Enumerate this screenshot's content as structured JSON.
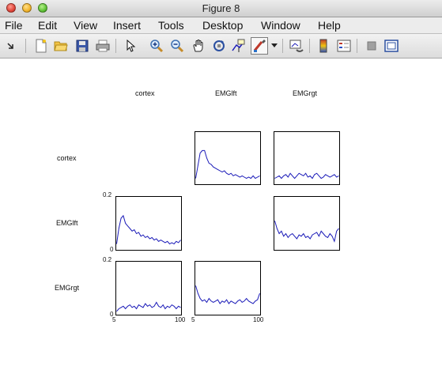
{
  "window": {
    "title": "Figure 8"
  },
  "menu": [
    "File",
    "Edit",
    "View",
    "Insert",
    "Tools",
    "Desktop",
    "Window",
    "Help"
  ],
  "toolbar": {
    "buttons": [
      "arrow-icon",
      "new-figure-icon",
      "open-file-icon",
      "save-icon",
      "print-icon",
      "select-pointer-icon",
      "zoom-in-icon",
      "zoom-out-icon",
      "pan-hand-icon",
      "rotate-3d-icon",
      "data-cursor-icon",
      "brush-icon",
      "brush-dropdown-icon",
      "link-plot-icon",
      "colorbar-icon",
      "legend-icon",
      "hide-plot-tools-icon",
      "show-plot-tools-icon"
    ]
  },
  "figure": {
    "column_labels": [
      "cortex",
      "EMGlft",
      "EMGrgt"
    ],
    "row_labels": [
      "cortex",
      "EMGlft",
      "EMGrgt"
    ],
    "y_tick_top": "0.2",
    "y_tick_bottom": "0",
    "x_tick_left": "5",
    "x_tick_right": "100"
  },
  "chart_data": {
    "type": "line",
    "grid_rows": [
      "cortex",
      "EMGlft",
      "EMGrgt"
    ],
    "grid_cols": [
      "cortex",
      "EMGlft",
      "EMGrgt"
    ],
    "xlim": [
      5,
      100
    ],
    "ylim": [
      0,
      0.2
    ],
    "line_color": "#1a1ab8",
    "panels": [
      {
        "row": "cortex",
        "col": "EMGlft",
        "y": [
          0.02,
          0.07,
          0.12,
          0.13,
          0.13,
          0.1,
          0.08,
          0.075,
          0.065,
          0.06,
          0.055,
          0.05,
          0.045,
          0.05,
          0.04,
          0.035,
          0.04,
          0.03,
          0.035,
          0.03,
          0.025,
          0.03,
          0.025,
          0.02,
          0.025,
          0.02,
          0.03,
          0.02,
          0.025,
          0.03
        ]
      },
      {
        "row": "cortex",
        "col": "EMGrgt",
        "y": [
          0.02,
          0.025,
          0.03,
          0.02,
          0.03,
          0.035,
          0.025,
          0.04,
          0.03,
          0.02,
          0.03,
          0.04,
          0.035,
          0.03,
          0.04,
          0.025,
          0.03,
          0.02,
          0.035,
          0.04,
          0.03,
          0.02,
          0.025,
          0.035,
          0.03,
          0.025,
          0.03,
          0.035,
          0.025,
          0.03
        ]
      },
      {
        "row": "EMGlft",
        "col": "cortex",
        "y": [
          0.02,
          0.08,
          0.12,
          0.13,
          0.1,
          0.09,
          0.08,
          0.07,
          0.075,
          0.06,
          0.065,
          0.05,
          0.055,
          0.045,
          0.05,
          0.04,
          0.045,
          0.035,
          0.04,
          0.03,
          0.035,
          0.03,
          0.025,
          0.03,
          0.02,
          0.025,
          0.02,
          0.03,
          0.025,
          0.035
        ]
      },
      {
        "row": "EMGlft",
        "col": "EMGrgt",
        "y": [
          0.11,
          0.08,
          0.06,
          0.07,
          0.05,
          0.06,
          0.045,
          0.055,
          0.06,
          0.05,
          0.04,
          0.055,
          0.05,
          0.06,
          0.045,
          0.05,
          0.04,
          0.055,
          0.06,
          0.065,
          0.05,
          0.07,
          0.06,
          0.05,
          0.045,
          0.06,
          0.05,
          0.03,
          0.07,
          0.08
        ]
      },
      {
        "row": "EMGrgt",
        "col": "cortex",
        "y": [
          0.01,
          0.02,
          0.025,
          0.03,
          0.02,
          0.03,
          0.035,
          0.025,
          0.03,
          0.02,
          0.035,
          0.03,
          0.025,
          0.04,
          0.03,
          0.035,
          0.025,
          0.03,
          0.045,
          0.03,
          0.025,
          0.035,
          0.02,
          0.03,
          0.025,
          0.035,
          0.03,
          0.02,
          0.03,
          0.025
        ]
      },
      {
        "row": "EMGrgt",
        "col": "EMGlft",
        "y": [
          0.11,
          0.08,
          0.06,
          0.05,
          0.055,
          0.045,
          0.06,
          0.05,
          0.045,
          0.05,
          0.055,
          0.04,
          0.05,
          0.045,
          0.055,
          0.04,
          0.05,
          0.045,
          0.04,
          0.05,
          0.055,
          0.045,
          0.05,
          0.06,
          0.05,
          0.045,
          0.04,
          0.05,
          0.055,
          0.08
        ]
      }
    ]
  }
}
